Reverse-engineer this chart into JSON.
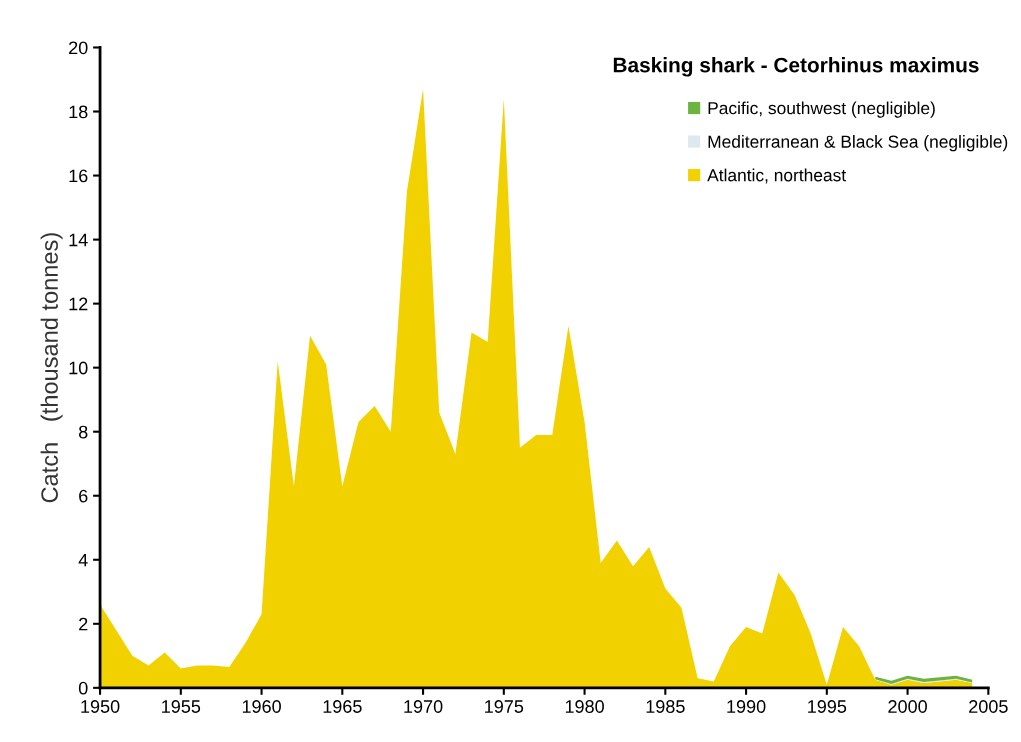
{
  "chart_data": {
    "type": "area",
    "stacked": true,
    "title": "Basking shark - Cetorhinus maximus",
    "ylabel": "Catch   (thousand tonnes)",
    "x": [
      1950,
      1951,
      1952,
      1953,
      1954,
      1955,
      1956,
      1957,
      1958,
      1959,
      1960,
      1961,
      1962,
      1963,
      1964,
      1965,
      1966,
      1967,
      1968,
      1969,
      1970,
      1971,
      1972,
      1973,
      1974,
      1975,
      1976,
      1977,
      1978,
      1979,
      1980,
      1981,
      1982,
      1983,
      1984,
      1985,
      1986,
      1987,
      1988,
      1989,
      1990,
      1991,
      1992,
      1993,
      1994,
      1995,
      1996,
      1997,
      1998,
      1999,
      2000,
      2001,
      2002,
      2003,
      2004
    ],
    "series": [
      {
        "name": "Atlantic, northeast",
        "color": "#f2d100",
        "values": [
          2.6,
          1.8,
          1.0,
          0.7,
          1.1,
          0.6,
          0.7,
          0.7,
          0.65,
          1.4,
          2.3,
          10.2,
          6.3,
          11.0,
          10.1,
          6.3,
          8.3,
          8.8,
          8.0,
          15.5,
          18.7,
          8.6,
          7.3,
          11.1,
          10.8,
          18.4,
          7.5,
          7.9,
          7.9,
          11.3,
          8.3,
          3.9,
          4.6,
          3.8,
          4.4,
          3.1,
          2.5,
          0.3,
          0.2,
          1.3,
          1.9,
          1.7,
          3.6,
          2.9,
          1.7,
          0.1,
          1.9,
          1.3,
          0.25,
          0.1,
          0.25,
          0.15,
          0.2,
          0.25,
          0.15
        ]
      },
      {
        "name": "Mediterranean & Black Sea (negligible)",
        "color": "#dde9ee",
        "values": [
          null,
          null,
          null,
          null,
          null,
          null,
          null,
          null,
          null,
          null,
          null,
          null,
          null,
          null,
          null,
          null,
          null,
          null,
          null,
          null,
          null,
          null,
          null,
          null,
          null,
          null,
          null,
          null,
          null,
          null,
          null,
          null,
          null,
          null,
          null,
          null,
          null,
          null,
          null,
          null,
          null,
          null,
          null,
          null,
          null,
          null,
          null,
          null,
          0.02,
          0.02,
          0.03,
          0.03,
          0.03,
          0.03,
          0.02
        ]
      },
      {
        "name": "Pacific, southwest (negligible)",
        "color": "#6db33f",
        "values": [
          null,
          null,
          null,
          null,
          null,
          null,
          null,
          null,
          null,
          null,
          null,
          null,
          null,
          null,
          null,
          null,
          null,
          null,
          null,
          null,
          null,
          null,
          null,
          null,
          null,
          null,
          null,
          null,
          null,
          null,
          null,
          null,
          null,
          null,
          null,
          null,
          null,
          null,
          null,
          null,
          null,
          null,
          null,
          null,
          null,
          null,
          null,
          null,
          0.08,
          0.1,
          0.1,
          0.1,
          0.1,
          0.1,
          0.08
        ]
      }
    ],
    "xlim": [
      1950,
      2005
    ],
    "xticks": [
      1950,
      1955,
      1960,
      1965,
      1970,
      1975,
      1980,
      1985,
      1990,
      1995,
      2000,
      2005
    ],
    "ylim": [
      0,
      20
    ],
    "yticks": [
      0,
      2,
      4,
      6,
      8,
      10,
      12,
      14,
      16,
      18,
      20
    ],
    "grid": false,
    "legend": "top right"
  }
}
